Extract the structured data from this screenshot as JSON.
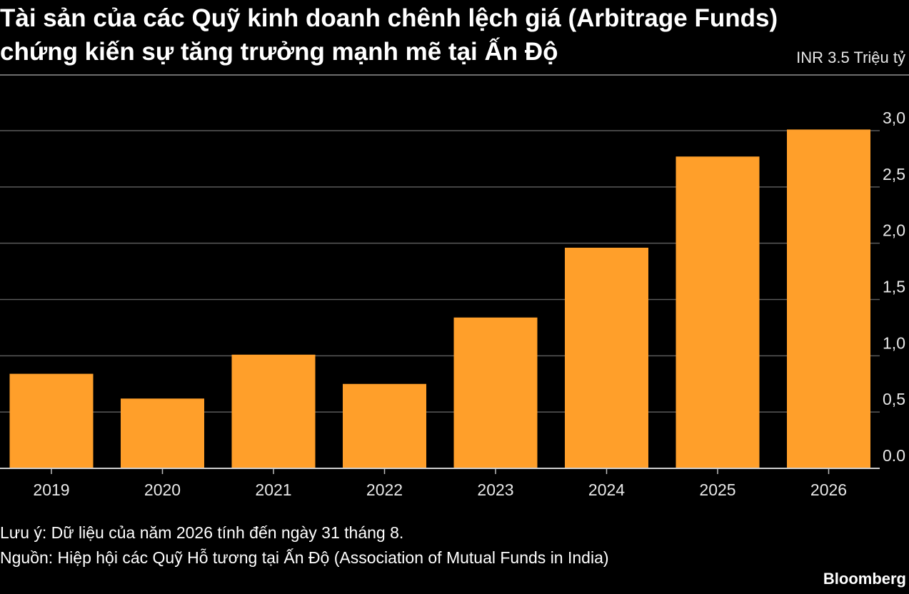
{
  "header": {
    "title_lines": [
      "Tài sản của các Quỹ kinh doanh chênh lệch giá (Arbitrage Funds)",
      "chứng kiến sự tăng trưởng mạnh mẽ tại Ấn Độ"
    ],
    "unit_label": "INR 3.5 Triệu tỷ"
  },
  "chart_data": {
    "type": "bar",
    "categories": [
      "2019",
      "2020",
      "2021",
      "2022",
      "2023",
      "2024",
      "2025",
      "2026"
    ],
    "values": [
      0.84,
      0.62,
      1.01,
      0.75,
      1.34,
      1.96,
      2.77,
      3.01
    ],
    "ylim": [
      0,
      3.0
    ],
    "yticks": [
      0.0,
      0.5,
      1.0,
      1.5,
      2.0,
      2.5,
      3.0
    ],
    "ytick_labels": [
      "0.0",
      "0,5",
      "1,0",
      "1,5",
      "2,0",
      "2,5",
      "3,0"
    ],
    "grid": true,
    "bar_color": "#ff9f2a",
    "grid_color": "#5a5a5a"
  },
  "footer": {
    "note": "Lưu ý: Dữ liệu của năm 2026 tính đến ngày 31 tháng 8.",
    "source": "Nguồn: Hiệp hội các Quỹ Hỗ tương tại Ấn Độ (Association of Mutual Funds in India)",
    "logo": "Bloomberg"
  }
}
